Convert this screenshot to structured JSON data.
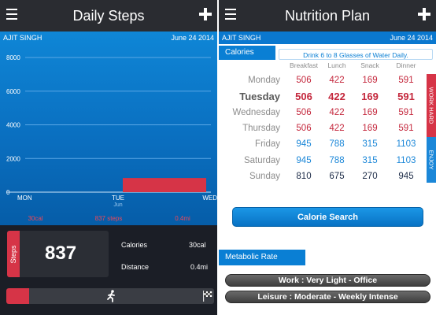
{
  "daily_steps": {
    "title": "Daily Steps",
    "user_name": "AJIT SINGH",
    "date": "June 24 2014",
    "chart_data": {
      "type": "bar",
      "y_ticks": [
        "8000",
        "6000",
        "4000",
        "2000",
        "0"
      ],
      "ylim": [
        0,
        8000
      ],
      "x_ticks": [
        "MON",
        "TUE",
        "WED"
      ],
      "x_sublabel": "Jun",
      "bars": [
        {
          "from": "TUE",
          "to": "WED",
          "value": 837
        }
      ],
      "bottom_labels": [
        "30cal",
        "837 steps",
        "0.4mi"
      ],
      "colors": {
        "bar": "#d63447",
        "grid": "#5aa7e6"
      }
    },
    "stats": {
      "steps_label": "Steps",
      "steps_value": "837",
      "calories_label": "Calories",
      "calories_value": "30cal",
      "distance_label": "Distance",
      "distance_value": "0.4mi"
    },
    "progress_fraction": 0.11,
    "icons": {
      "runner": "runner-icon",
      "goal": "checkered-flag-icon",
      "menu": "menu-icon",
      "add": "plus-icon"
    }
  },
  "nutrition": {
    "title": "Nutrition Plan",
    "user_name": "AJIT SINGH",
    "date": "June 24 2014",
    "calories_header": "Calories",
    "water_tip": "Drink 6 to 8 Glasses of Water Daily.",
    "meals": [
      "Breakfast",
      "Lunch",
      "Snack",
      "Dinner"
    ],
    "rows": [
      {
        "day": "Monday",
        "values": [
          "506",
          "422",
          "169",
          "591"
        ],
        "group": "red",
        "bold": false
      },
      {
        "day": "Tuesday",
        "values": [
          "506",
          "422",
          "169",
          "591"
        ],
        "group": "red",
        "bold": true
      },
      {
        "day": "Wednesday",
        "values": [
          "506",
          "422",
          "169",
          "591"
        ],
        "group": "red",
        "bold": false
      },
      {
        "day": "Thursday",
        "values": [
          "506",
          "422",
          "169",
          "591"
        ],
        "group": "red",
        "bold": false
      },
      {
        "day": "Friday",
        "values": [
          "945",
          "788",
          "315",
          "1103"
        ],
        "group": "blue",
        "bold": false
      },
      {
        "day": "Saturday",
        "values": [
          "945",
          "788",
          "315",
          "1103"
        ],
        "group": "blue",
        "bold": false
      },
      {
        "day": "Sunday",
        "values": [
          "810",
          "675",
          "270",
          "945"
        ],
        "group": "dark",
        "bold": false
      }
    ],
    "side_tabs": {
      "work_hard": "WORK HARD",
      "enjoy": "ENJOY"
    },
    "calorie_search_label": "Calorie Search",
    "metabolic_header": "Metabolic Rate",
    "work_pill": "Work : Very Light - Office",
    "leisure_pill": "Leisure : Moderate - Weekly Intense",
    "colors": {
      "red": "#c4273c",
      "blue": "#1b87d8",
      "dark": "#1d2c48",
      "accent": "#0a7fd4"
    }
  }
}
